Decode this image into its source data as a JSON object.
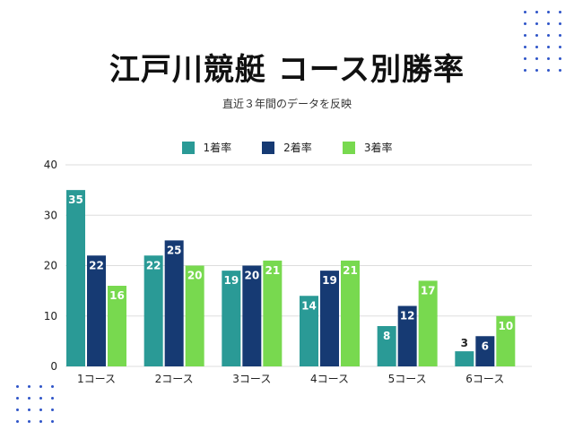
{
  "header": {
    "title": "江戸川競艇 コース別勝率",
    "subtitle": "直近３年間のデータを反映"
  },
  "colors": {
    "series": [
      "#2a9a96",
      "#163a73",
      "#78d94f"
    ],
    "dots": "#2f54c8",
    "grid": "#dddddd",
    "bar_label": "#ffffff",
    "small_label": "#222222"
  },
  "chart_data": {
    "type": "bar",
    "title": "江戸川競艇 コース別勝率",
    "subtitle": "直近３年間のデータを反映",
    "categories": [
      "1コース",
      "2コース",
      "3コース",
      "4コース",
      "5コース",
      "6コース"
    ],
    "series": [
      {
        "name": "1着率",
        "values": [
          35,
          22,
          19,
          14,
          8,
          3
        ]
      },
      {
        "name": "2着率",
        "values": [
          22,
          25,
          20,
          19,
          12,
          6
        ]
      },
      {
        "name": "3着率",
        "values": [
          16,
          20,
          21,
          21,
          17,
          10
        ]
      }
    ],
    "ylim": [
      0,
      40
    ],
    "yticks": [
      0,
      10,
      20,
      30,
      40
    ],
    "grid": true,
    "legend": "top-center"
  }
}
